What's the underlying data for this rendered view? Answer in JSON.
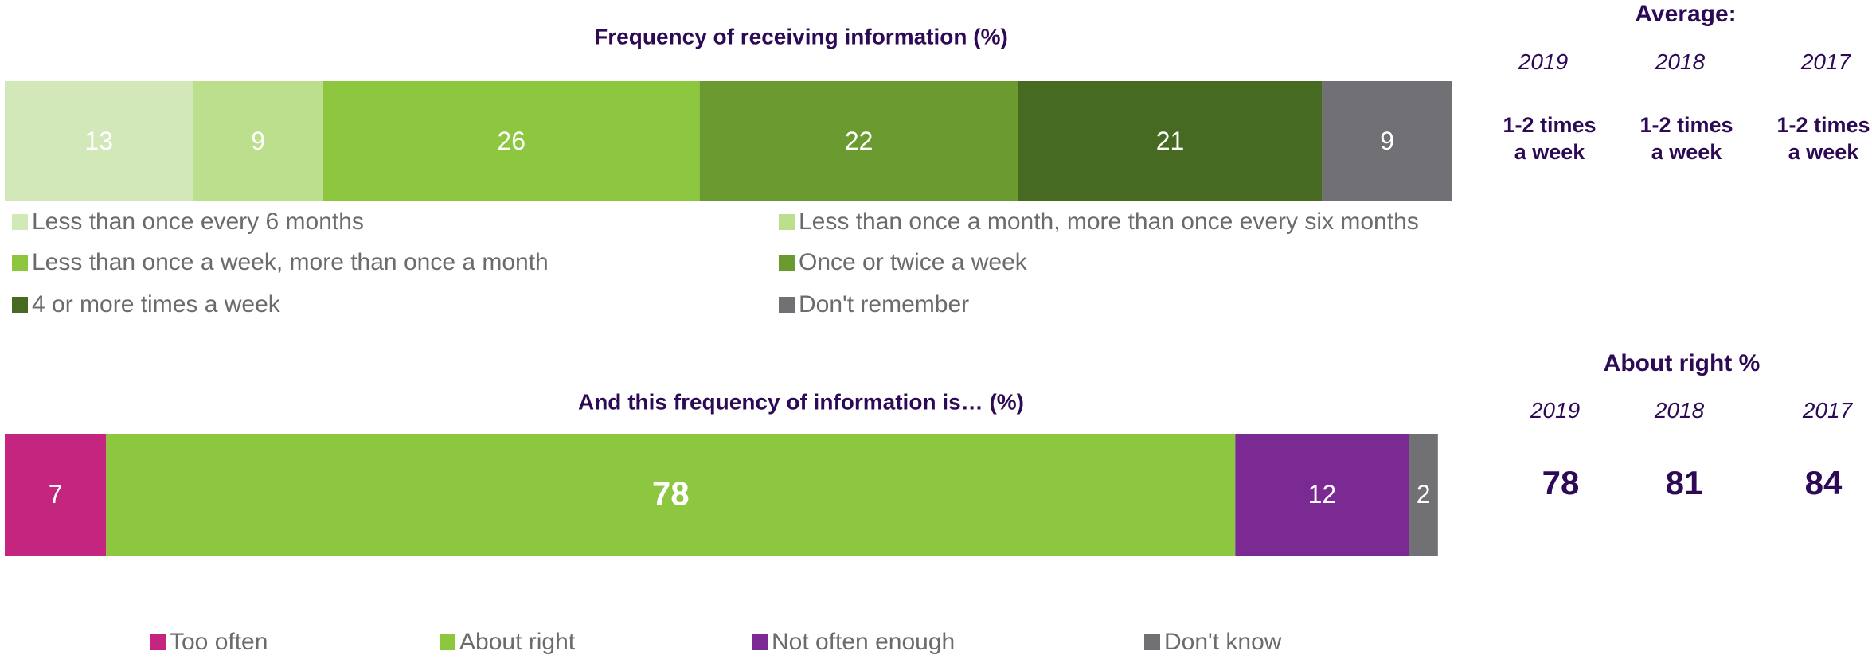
{
  "chart_data": [
    {
      "type": "stacked_bar_horizontal",
      "title": "Frequency of receiving information (%)",
      "xlim": [
        0,
        100
      ],
      "series": [
        {
          "name": "Less than once every 6 months",
          "color": "#d3e8b8",
          "values": [
            13
          ]
        },
        {
          "name": "Less than once a month, more than once every six months",
          "color": "#bcdf8e",
          "values": [
            9
          ]
        },
        {
          "name": "Less than once a week, more than once a month",
          "color": "#8dc63f",
          "values": [
            26
          ]
        },
        {
          "name": "Once or twice a week",
          "color": "#6a9a30",
          "values": [
            22
          ]
        },
        {
          "name": "4 or more times a week",
          "color": "#466a22",
          "values": [
            21
          ]
        },
        {
          "name": "Don't remember",
          "color": "#717074",
          "values": [
            9
          ]
        }
      ]
    },
    {
      "type": "stacked_bar_horizontal",
      "title": "And this frequency of information is… (%)",
      "xlim": [
        0,
        100
      ],
      "series": [
        {
          "name": "Too often",
          "color": "#c4267f",
          "values": [
            7
          ]
        },
        {
          "name": "About right",
          "color": "#8dc63f",
          "values": [
            78
          ]
        },
        {
          "name": "Not often enough",
          "color": "#7b2a93",
          "values": [
            12
          ]
        },
        {
          "name": "Don't know",
          "color": "#717074",
          "values": [
            2
          ]
        }
      ]
    }
  ],
  "panels": [
    {
      "title": "Average:",
      "years": [
        "2019",
        "2018",
        "2017"
      ],
      "values": [
        "1-2 times a week",
        "1-2 times a week",
        "1-2 times a week"
      ]
    },
    {
      "title": "About right %",
      "years": [
        "2019",
        "2018",
        "2017"
      ],
      "values": [
        78,
        81,
        84
      ]
    }
  ]
}
